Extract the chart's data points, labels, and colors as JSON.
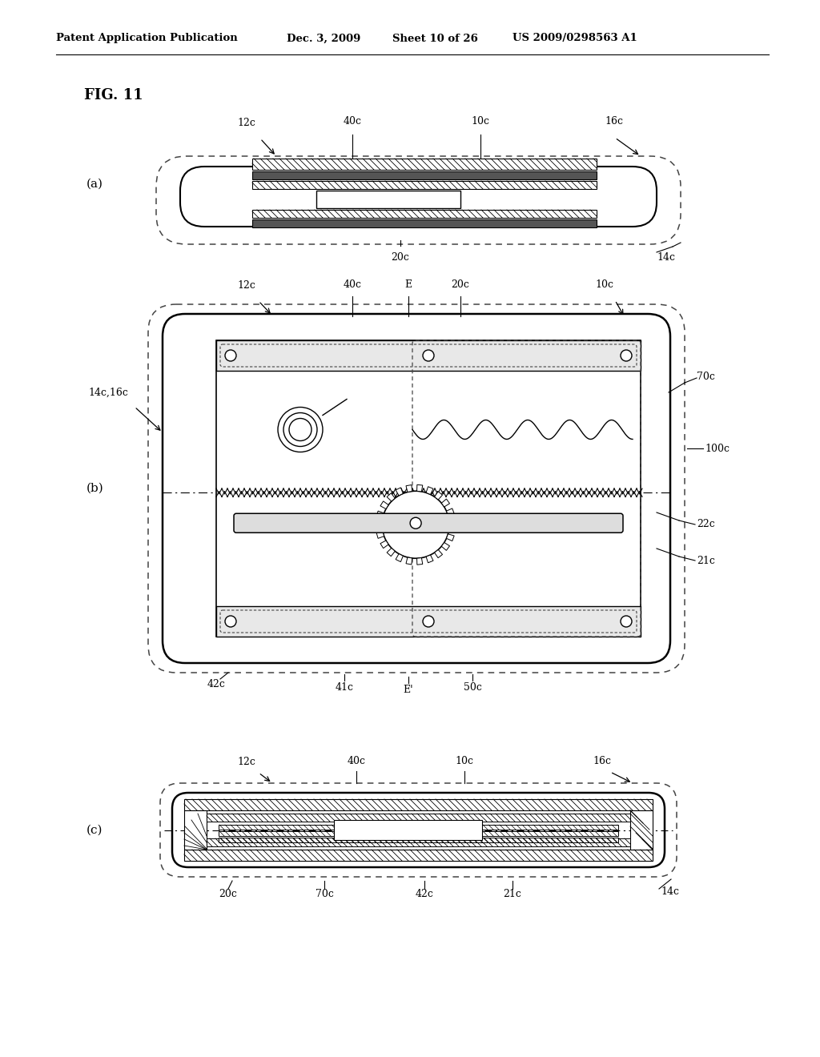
{
  "header_left": "Patent Application Publication",
  "header_date": "Dec. 3, 2009",
  "header_sheet": "Sheet 10 of 26",
  "header_patent": "US 2009/0298563 A1",
  "fig_label": "FIG. 11",
  "bg_color": "#ffffff",
  "line_color": "#000000",
  "dashed_color": "#555555"
}
